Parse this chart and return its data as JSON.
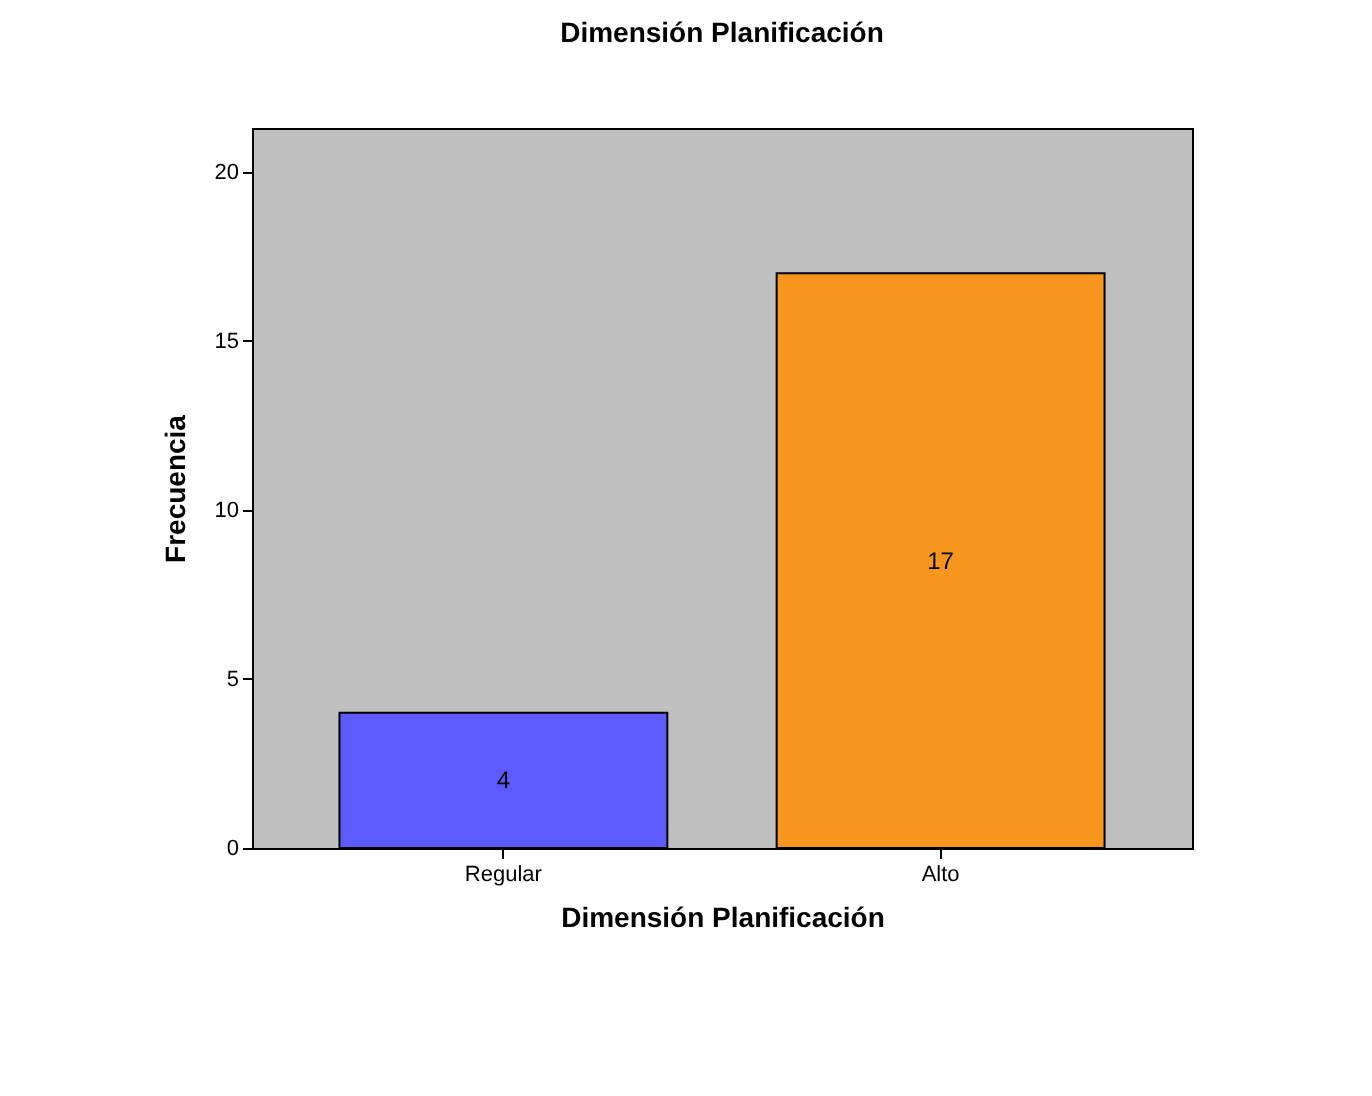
{
  "chart_data": {
    "type": "bar",
    "title": "Dimensión Planificación",
    "xlabel": "Dimensión Planificación",
    "ylabel": "Frecuencia",
    "categories": [
      "Regular",
      "Alto"
    ],
    "values": [
      4,
      17
    ],
    "colors": [
      "#5b5bff",
      "#f7961e"
    ],
    "ylim": [
      0,
      21.3
    ],
    "yticks": [
      0,
      5,
      10,
      15,
      20
    ],
    "data_labels": true
  }
}
